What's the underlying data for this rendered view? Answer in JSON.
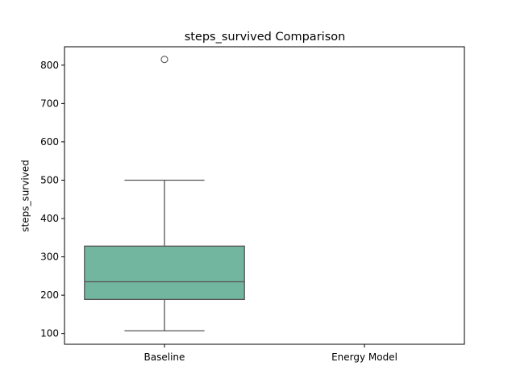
{
  "chart_data": {
    "type": "box",
    "title": "steps_survived Comparison",
    "xlabel": "",
    "ylabel": "steps_survived",
    "categories": [
      "Baseline",
      "Energy Model"
    ],
    "ylim": [
      72,
      848
    ],
    "yticks": [
      100,
      200,
      300,
      400,
      500,
      600,
      700,
      800
    ],
    "grid": false,
    "boxes": [
      {
        "category": "Baseline",
        "whisker_low": 107,
        "q1": 189,
        "median": 235,
        "q3": 328,
        "whisker_high": 500,
        "outliers": [
          815
        ],
        "color": "#73b69f"
      },
      {
        "category": "Energy Model"
      }
    ]
  }
}
